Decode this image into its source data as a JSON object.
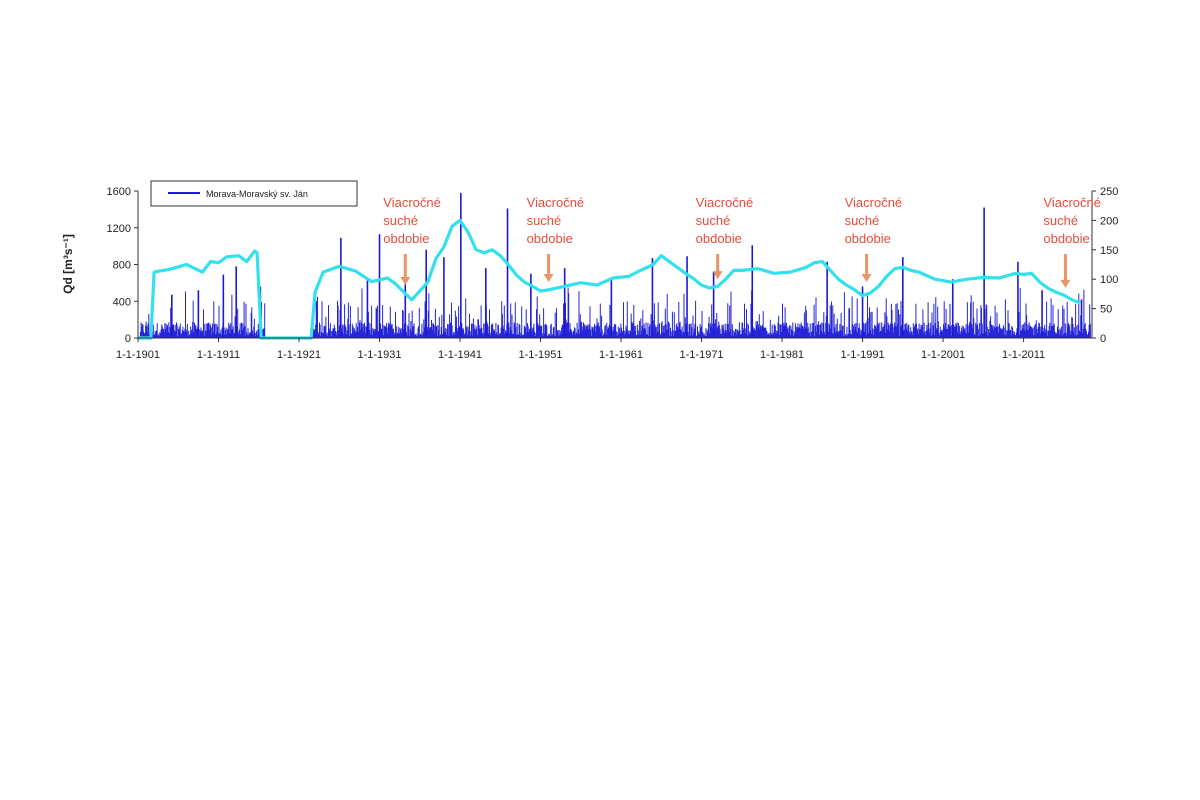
{
  "chart_data": {
    "type": "line",
    "ylabel": "Qd [m³s⁻¹]",
    "xlim": [
      1901,
      2019.5
    ],
    "ylim": [
      0,
      1600
    ],
    "y2lim": [
      0,
      250
    ],
    "yticks": [
      0,
      400,
      800,
      1200,
      1600
    ],
    "y2ticks": [
      0,
      50,
      100,
      150,
      200,
      250
    ],
    "xticks": [
      {
        "label": "1-1-1901",
        "year": 1901
      },
      {
        "label": "1-1-1911",
        "year": 1911
      },
      {
        "label": "1-1-1921",
        "year": 1921
      },
      {
        "label": "1-1-1931",
        "year": 1931
      },
      {
        "label": "1-1-1941",
        "year": 1941
      },
      {
        "label": "1-1-1951",
        "year": 1951
      },
      {
        "label": "1-1-1961",
        "year": 1961
      },
      {
        "label": "1-1-1971",
        "year": 1971
      },
      {
        "label": "1-1-1981",
        "year": 1981
      },
      {
        "label": "1-1-1991",
        "year": 1991
      },
      {
        "label": "1-1-2001",
        "year": 2001
      },
      {
        "label": "1-1-2011",
        "year": 2011
      }
    ],
    "grid": false,
    "legend": {
      "position": "top-left",
      "entries": [
        "Morava-Moravský sv. Ján"
      ]
    },
    "series": [
      {
        "name": "Morava-Moravský sv. Ján",
        "axis": "left",
        "color": "#1a1ad6",
        "gaps": [
          [
            1916.8,
            1922.7
          ]
        ],
        "peaks": [
          {
            "year": 1905.2,
            "value": 470
          },
          {
            "year": 1908.5,
            "value": 520
          },
          {
            "year": 1911.6,
            "value": 690
          },
          {
            "year": 1913.2,
            "value": 780
          },
          {
            "year": 1916.2,
            "value": 560
          },
          {
            "year": 1926.2,
            "value": 1090
          },
          {
            "year": 1929.5,
            "value": 640
          },
          {
            "year": 1931.0,
            "value": 1130
          },
          {
            "year": 1934.2,
            "value": 700
          },
          {
            "year": 1936.8,
            "value": 960
          },
          {
            "year": 1939.0,
            "value": 880
          },
          {
            "year": 1941.1,
            "value": 1580
          },
          {
            "year": 1944.2,
            "value": 760
          },
          {
            "year": 1946.9,
            "value": 1410
          },
          {
            "year": 1949.8,
            "value": 700
          },
          {
            "year": 1954.0,
            "value": 760
          },
          {
            "year": 1959.8,
            "value": 640
          },
          {
            "year": 1964.9,
            "value": 870
          },
          {
            "year": 1969.2,
            "value": 890
          },
          {
            "year": 1972.5,
            "value": 720
          },
          {
            "year": 1977.3,
            "value": 1010
          },
          {
            "year": 1986.6,
            "value": 830
          },
          {
            "year": 1991.0,
            "value": 560
          },
          {
            "year": 1996.0,
            "value": 880
          },
          {
            "year": 2002.2,
            "value": 640
          },
          {
            "year": 2006.1,
            "value": 1420
          },
          {
            "year": 2010.3,
            "value": 830
          },
          {
            "year": 2013.3,
            "value": 520
          },
          {
            "year": 2018.2,
            "value": 420
          }
        ]
      },
      {
        "name": "",
        "axis": "right",
        "color": "#33e0ee",
        "x": [
          1901,
          1902.6,
          1903,
          1905,
          1907,
          1909,
          1910,
          1911,
          1912,
          1913.5,
          1914.5,
          1915.5,
          1915.8,
          1916.3,
          1918,
          1921,
          1922.5,
          1923,
          1924,
          1926,
          1928,
          1930,
          1932,
          1933,
          1934,
          1935,
          1936,
          1937,
          1938,
          1939,
          1940,
          1941,
          1942,
          1943,
          1944,
          1945,
          1946,
          1947,
          1948,
          1949,
          1950,
          1951,
          1952,
          1954,
          1956,
          1958,
          1960,
          1962,
          1963,
          1965,
          1966,
          1967,
          1968,
          1969,
          1970,
          1971,
          1972,
          1973,
          1974,
          1975,
          1976,
          1978,
          1980,
          1982,
          1984,
          1985,
          1986,
          1987,
          1988,
          1989,
          1990,
          1991,
          1992,
          1993,
          1994,
          1995,
          1996,
          1997,
          1998,
          2000,
          2002,
          2004,
          2006,
          2008,
          2010,
          2011,
          2012,
          2013,
          2014,
          2015,
          2016,
          2017,
          2018
        ],
        "y": [
          0,
          0,
          112,
          117,
          125,
          112,
          130,
          128,
          138,
          140,
          130,
          148,
          145,
          0,
          0,
          0,
          0,
          78,
          112,
          122,
          114,
          96,
          102,
          92,
          78,
          65,
          80,
          95,
          135,
          155,
          190,
          200,
          180,
          150,
          145,
          150,
          140,
          125,
          107,
          95,
          88,
          80,
          82,
          88,
          94,
          90,
          102,
          105,
          112,
          125,
          140,
          130,
          120,
          110,
          101,
          90,
          85,
          88,
          100,
          115,
          115,
          118,
          110,
          112,
          120,
          128,
          130,
          115,
          100,
          90,
          82,
          72,
          77,
          88,
          105,
          118,
          120,
          115,
          112,
          100,
          95,
          100,
          103,
          102,
          110,
          108,
          110,
          95,
          85,
          78,
          73,
          65,
          60
        ]
      }
    ],
    "annotations": [
      {
        "lines": [
          "Viacročné",
          "suché",
          "obdobie"
        ],
        "arrow_year": 1934.2,
        "arrow_tip_value": 80
      },
      {
        "lines": [
          "Viacročné",
          "suché",
          "obdobie"
        ],
        "arrow_year": 1952.0,
        "arrow_tip_value": 85
      },
      {
        "lines": [
          "Viacročné",
          "suché",
          "obdobie"
        ],
        "arrow_year": 1973.0,
        "arrow_tip_value": 90
      },
      {
        "lines": [
          "Viacročné",
          "suché",
          "obdobie"
        ],
        "arrow_year": 1991.5,
        "arrow_tip_value": 85
      },
      {
        "lines": [
          "Viacročné",
          "suché",
          "obdobie"
        ],
        "arrow_year": 2016.2,
        "arrow_tip_value": 75
      }
    ],
    "annotation_text_color": "#e84c3d",
    "annotation_arrow_color": "#e8956a"
  }
}
